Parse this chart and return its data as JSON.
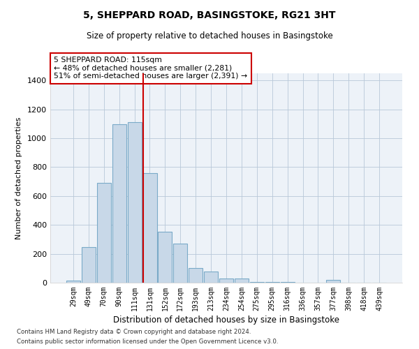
{
  "title": "5, SHEPPARD ROAD, BASINGSTOKE, RG21 3HT",
  "subtitle": "Size of property relative to detached houses in Basingstoke",
  "xlabel": "Distribution of detached houses by size in Basingstoke",
  "ylabel": "Number of detached properties",
  "bar_color": "#c8d8e8",
  "bar_edge_color": "#7aaac8",
  "background_color": "#edf2f8",
  "categories": [
    "29sqm",
    "49sqm",
    "70sqm",
    "90sqm",
    "111sqm",
    "131sqm",
    "152sqm",
    "172sqm",
    "193sqm",
    "213sqm",
    "234sqm",
    "254sqm",
    "275sqm",
    "295sqm",
    "316sqm",
    "336sqm",
    "357sqm",
    "377sqm",
    "398sqm",
    "418sqm",
    "439sqm"
  ],
  "values": [
    15,
    245,
    690,
    1095,
    1110,
    760,
    355,
    270,
    100,
    75,
    30,
    30,
    5,
    5,
    5,
    0,
    0,
    18,
    0,
    0,
    0
  ],
  "ylim": [
    0,
    1450
  ],
  "yticks": [
    0,
    200,
    400,
    600,
    800,
    1000,
    1200,
    1400
  ],
  "property_line_x": 4.55,
  "annotation_box_text": "5 SHEPPARD ROAD: 115sqm\n← 48% of detached houses are smaller (2,281)\n51% of semi-detached houses are larger (2,391) →",
  "annotation_box_color": "#cc0000",
  "footnote1": "Contains HM Land Registry data © Crown copyright and database right 2024.",
  "footnote2": "Contains public sector information licensed under the Open Government Licence v3.0."
}
